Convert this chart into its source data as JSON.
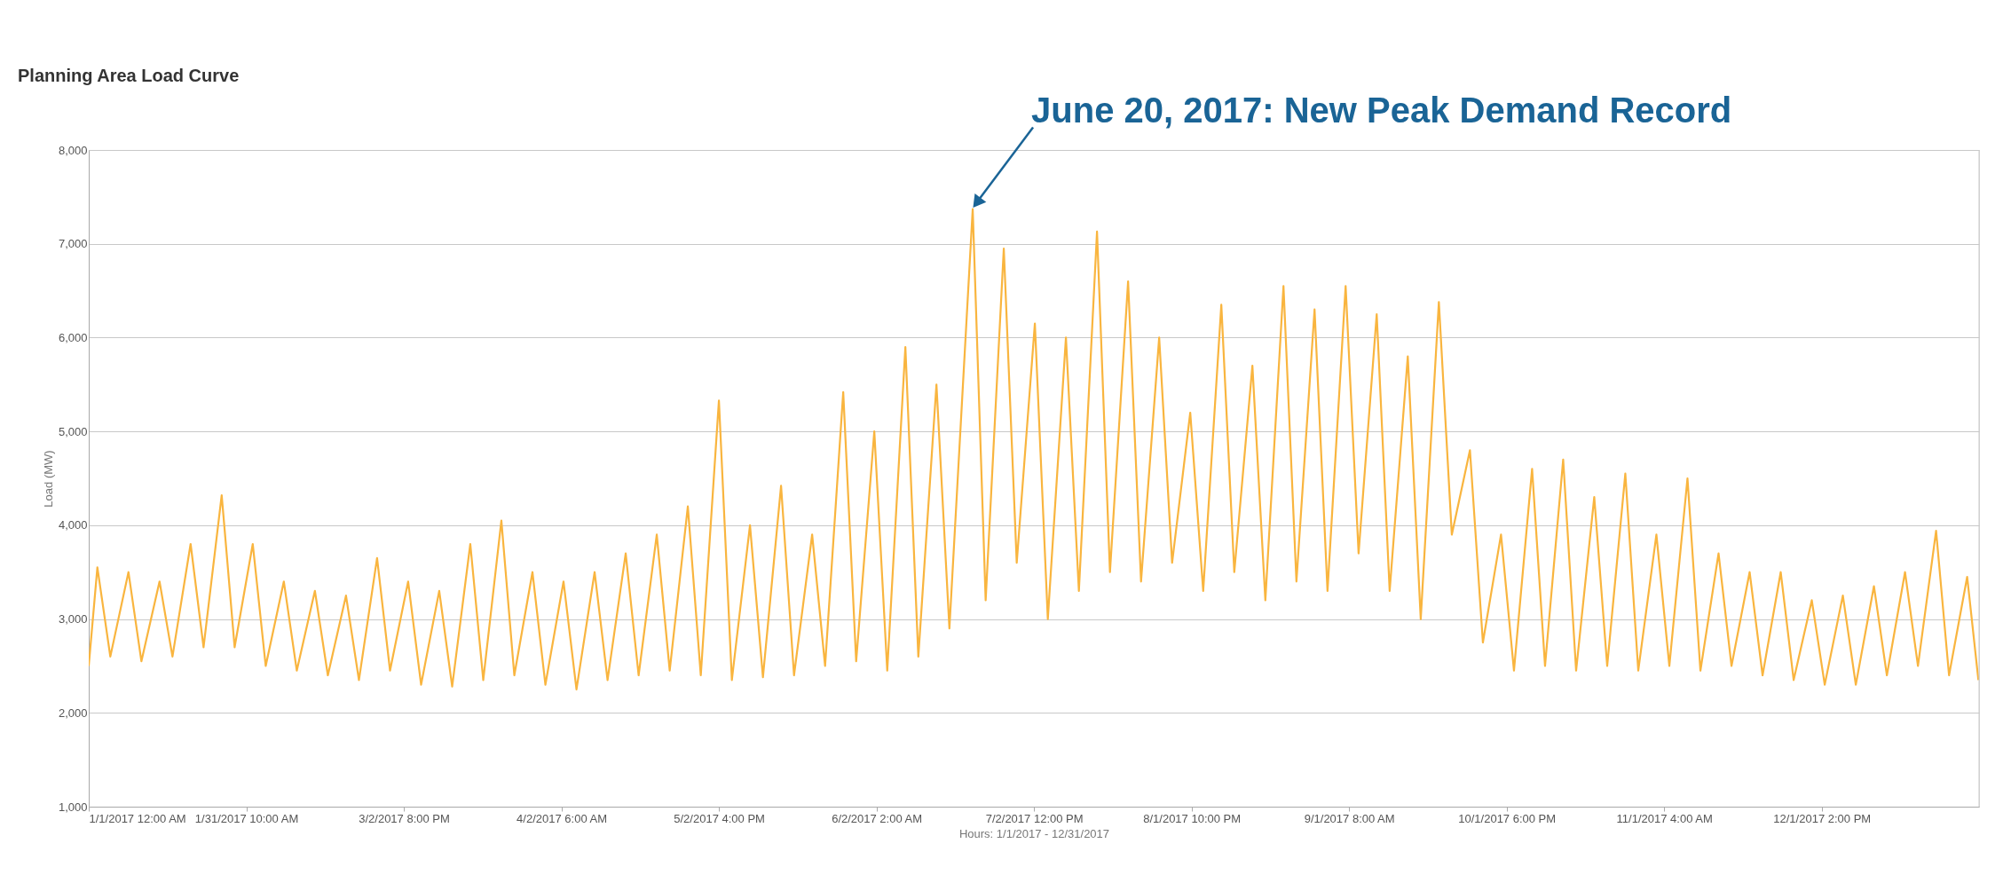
{
  "chart_data": {
    "type": "line",
    "title": "Planning Area Load Curve",
    "xlabel": "Hours: 1/1/2017 - 12/31/2017",
    "ylabel": "Load (MW)",
    "annotations": [
      {
        "text": "June 20, 2017: New Peak Demand Record",
        "x": "2017-06-20T16:00",
        "y": 7370
      }
    ],
    "xlim": [
      "2017-01-01T00:00",
      "2017-12-31T23:00"
    ],
    "xticks": [
      {
        "value": "2017-01-01T00:00",
        "label": "1/1/2017 12:00 AM"
      },
      {
        "value": "2017-01-31T10:00",
        "label": "1/31/2017 10:00 AM"
      },
      {
        "value": "2017-03-02T20:00",
        "label": "3/2/2017 8:00 PM"
      },
      {
        "value": "2017-04-02T06:00",
        "label": "4/2/2017 6:00 AM"
      },
      {
        "value": "2017-05-02T16:00",
        "label": "5/2/2017 4:00 PM"
      },
      {
        "value": "2017-06-02T02:00",
        "label": "6/2/2017 2:00 AM"
      },
      {
        "value": "2017-07-02T12:00",
        "label": "7/2/2017 12:00 PM"
      },
      {
        "value": "2017-08-01T22:00",
        "label": "8/1/2017 10:00 PM"
      },
      {
        "value": "2017-09-01T08:00",
        "label": "9/1/2017 8:00 AM"
      },
      {
        "value": "2017-10-01T18:00",
        "label": "10/1/2017 6:00 PM"
      },
      {
        "value": "2017-11-01T04:00",
        "label": "11/1/2017 4:00 AM"
      },
      {
        "value": "2017-12-01T14:00",
        "label": "12/1/2017 2:00 PM"
      }
    ],
    "ylim": [
      1000,
      8000
    ],
    "yticks": [
      {
        "value": 1000,
        "label": "1,000"
      },
      {
        "value": 2000,
        "label": "2,000"
      },
      {
        "value": 3000,
        "label": "3,000"
      },
      {
        "value": 4000,
        "label": "4,000"
      },
      {
        "value": 5000,
        "label": "5,000"
      },
      {
        "value": 6000,
        "label": "6,000"
      },
      {
        "value": 7000,
        "label": "7,000"
      },
      {
        "value": 8000,
        "label": "8,000"
      }
    ],
    "grid": "y",
    "series": [
      {
        "color": "#f9b53f",
        "x": [
          "2017-01-01T00:00",
          "2017-01-02T16:00",
          "2017-01-05T04:00",
          "2017-01-08T16:00",
          "2017-01-11T04:00",
          "2017-01-14T16:00",
          "2017-01-17T04:00",
          "2017-01-20T16:00",
          "2017-01-23T04:00",
          "2017-01-26T16:00",
          "2017-01-29T04:00",
          "2017-02-01T16:00",
          "2017-02-04T04:00",
          "2017-02-07T16:00",
          "2017-02-10T04:00",
          "2017-02-13T16:00",
          "2017-02-16T04:00",
          "2017-02-19T16:00",
          "2017-02-22T04:00",
          "2017-02-25T16:00",
          "2017-02-28T04:00",
          "2017-03-03T16:00",
          "2017-03-06T04:00",
          "2017-03-09T16:00",
          "2017-03-12T04:00",
          "2017-03-15T16:00",
          "2017-03-18T04:00",
          "2017-03-21T16:00",
          "2017-03-24T04:00",
          "2017-03-27T16:00",
          "2017-03-30T04:00",
          "2017-04-02T16:00",
          "2017-04-05T04:00",
          "2017-04-08T16:00",
          "2017-04-11T04:00",
          "2017-04-14T16:00",
          "2017-04-17T04:00",
          "2017-04-20T16:00",
          "2017-04-23T04:00",
          "2017-04-26T16:00",
          "2017-04-29T04:00",
          "2017-05-02T16:00",
          "2017-05-05T04:00",
          "2017-05-08T16:00",
          "2017-05-11T04:00",
          "2017-05-14T16:00",
          "2017-05-17T04:00",
          "2017-05-20T16:00",
          "2017-05-23T04:00",
          "2017-05-26T16:00",
          "2017-05-29T04:00",
          "2017-06-01T16:00",
          "2017-06-04T04:00",
          "2017-06-07T16:00",
          "2017-06-10T04:00",
          "2017-06-13T16:00",
          "2017-06-16T04:00",
          "2017-06-20T16:00",
          "2017-06-23T04:00",
          "2017-06-26T16:00",
          "2017-06-29T04:00",
          "2017-07-02T16:00",
          "2017-07-05T04:00",
          "2017-07-08T16:00",
          "2017-07-11T04:00",
          "2017-07-14T16:00",
          "2017-07-17T04:00",
          "2017-07-20T16:00",
          "2017-07-23T04:00",
          "2017-07-26T16:00",
          "2017-07-29T04:00",
          "2017-08-01T16:00",
          "2017-08-04T04:00",
          "2017-08-07T16:00",
          "2017-08-10T04:00",
          "2017-08-13T16:00",
          "2017-08-16T04:00",
          "2017-08-19T16:00",
          "2017-08-22T04:00",
          "2017-08-25T16:00",
          "2017-08-28T04:00",
          "2017-08-31T16:00",
          "2017-09-03T04:00",
          "2017-09-06T16:00",
          "2017-09-09T04:00",
          "2017-09-12T16:00",
          "2017-09-15T04:00",
          "2017-09-18T16:00",
          "2017-09-21T04:00",
          "2017-09-24T16:00",
          "2017-09-27T04:00",
          "2017-09-30T16:00",
          "2017-10-03T04:00",
          "2017-10-06T16:00",
          "2017-10-09T04:00",
          "2017-10-12T16:00",
          "2017-10-15T04:00",
          "2017-10-18T16:00",
          "2017-10-21T04:00",
          "2017-10-24T16:00",
          "2017-10-27T04:00",
          "2017-10-30T16:00",
          "2017-11-02T04:00",
          "2017-11-05T16:00",
          "2017-11-08T04:00",
          "2017-11-11T16:00",
          "2017-11-14T04:00",
          "2017-11-17T16:00",
          "2017-11-20T04:00",
          "2017-11-23T16:00",
          "2017-11-26T04:00",
          "2017-11-29T16:00",
          "2017-12-02T04:00",
          "2017-12-05T16:00",
          "2017-12-08T04:00",
          "2017-12-11T16:00",
          "2017-12-14T04:00",
          "2017-12-17T16:00",
          "2017-12-20T04:00",
          "2017-12-23T16:00",
          "2017-12-26T04:00",
          "2017-12-29T16:00",
          "2017-12-31T20:00"
        ],
        "values": [
          2500,
          3550,
          2600,
          3500,
          2550,
          3400,
          2600,
          3800,
          2700,
          4320,
          2700,
          3800,
          2500,
          3400,
          2450,
          3300,
          2400,
          3250,
          2350,
          3650,
          2450,
          3400,
          2300,
          3300,
          2280,
          3800,
          2350,
          4050,
          2400,
          3500,
          2300,
          3400,
          2250,
          3500,
          2350,
          3700,
          2400,
          3900,
          2450,
          4200,
          2400,
          5330,
          2350,
          4000,
          2380,
          4420,
          2400,
          3900,
          2500,
          5420,
          2550,
          5000,
          2450,
          5900,
          2600,
          5500,
          2900,
          7370,
          3200,
          6950,
          3600,
          6150,
          3000,
          6000,
          3300,
          7130,
          3500,
          6600,
          3400,
          6000,
          3600,
          5200,
          3300,
          6350,
          3500,
          5700,
          3200,
          6550,
          3400,
          6300,
          3300,
          6550,
          3700,
          6250,
          3300,
          5800,
          3000,
          6380,
          3900,
          4800,
          2750,
          3900,
          2450,
          4600,
          2500,
          4700,
          2450,
          4300,
          2500,
          4550,
          2450,
          3900,
          2500,
          4500,
          2450,
          3700,
          2500,
          3500,
          2400,
          3500,
          2350,
          3200,
          2300,
          3250,
          2300,
          3350,
          2400,
          3500,
          2500,
          3940,
          2400,
          3450,
          2350
        ]
      }
    ]
  }
}
